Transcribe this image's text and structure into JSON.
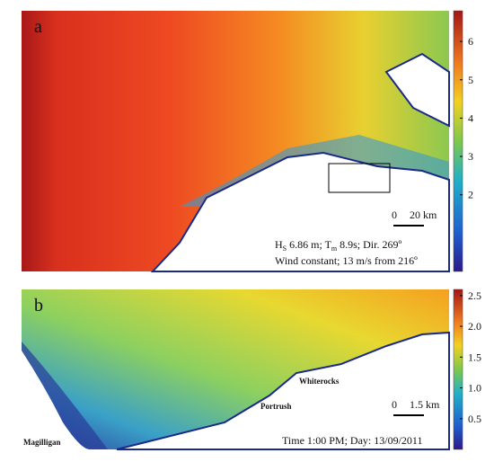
{
  "panels": [
    {
      "label": "a",
      "colorbar": {
        "clim": [
          0,
          6.8
        ],
        "ticks": [
          2,
          3,
          4,
          5,
          6
        ]
      },
      "scale_bar": [
        "0",
        "20 km"
      ],
      "annotation_line1": [
        "H",
        "S",
        " 6.86 m; T",
        "m",
        " 8.9s; Dir. 269º"
      ],
      "annotation_line2": "Wind constant; 13 m/s from 216º"
    },
    {
      "label": "b",
      "colorbar": {
        "clim": [
          0,
          2.6
        ],
        "ticks": [
          0.5,
          {
            "value": 1,
            "label": "1.0"
          },
          1.5,
          {
            "value": 2,
            "label": "2.0"
          },
          2.5
        ]
      },
      "scale_bar": [
        "0",
        "1.5 km"
      ],
      "places": [
        "Portrush",
        "Whiterocks",
        "Magilligan"
      ],
      "annotation_line1": "Time 1:00 PM; Day: 13/09/2011"
    }
  ]
}
